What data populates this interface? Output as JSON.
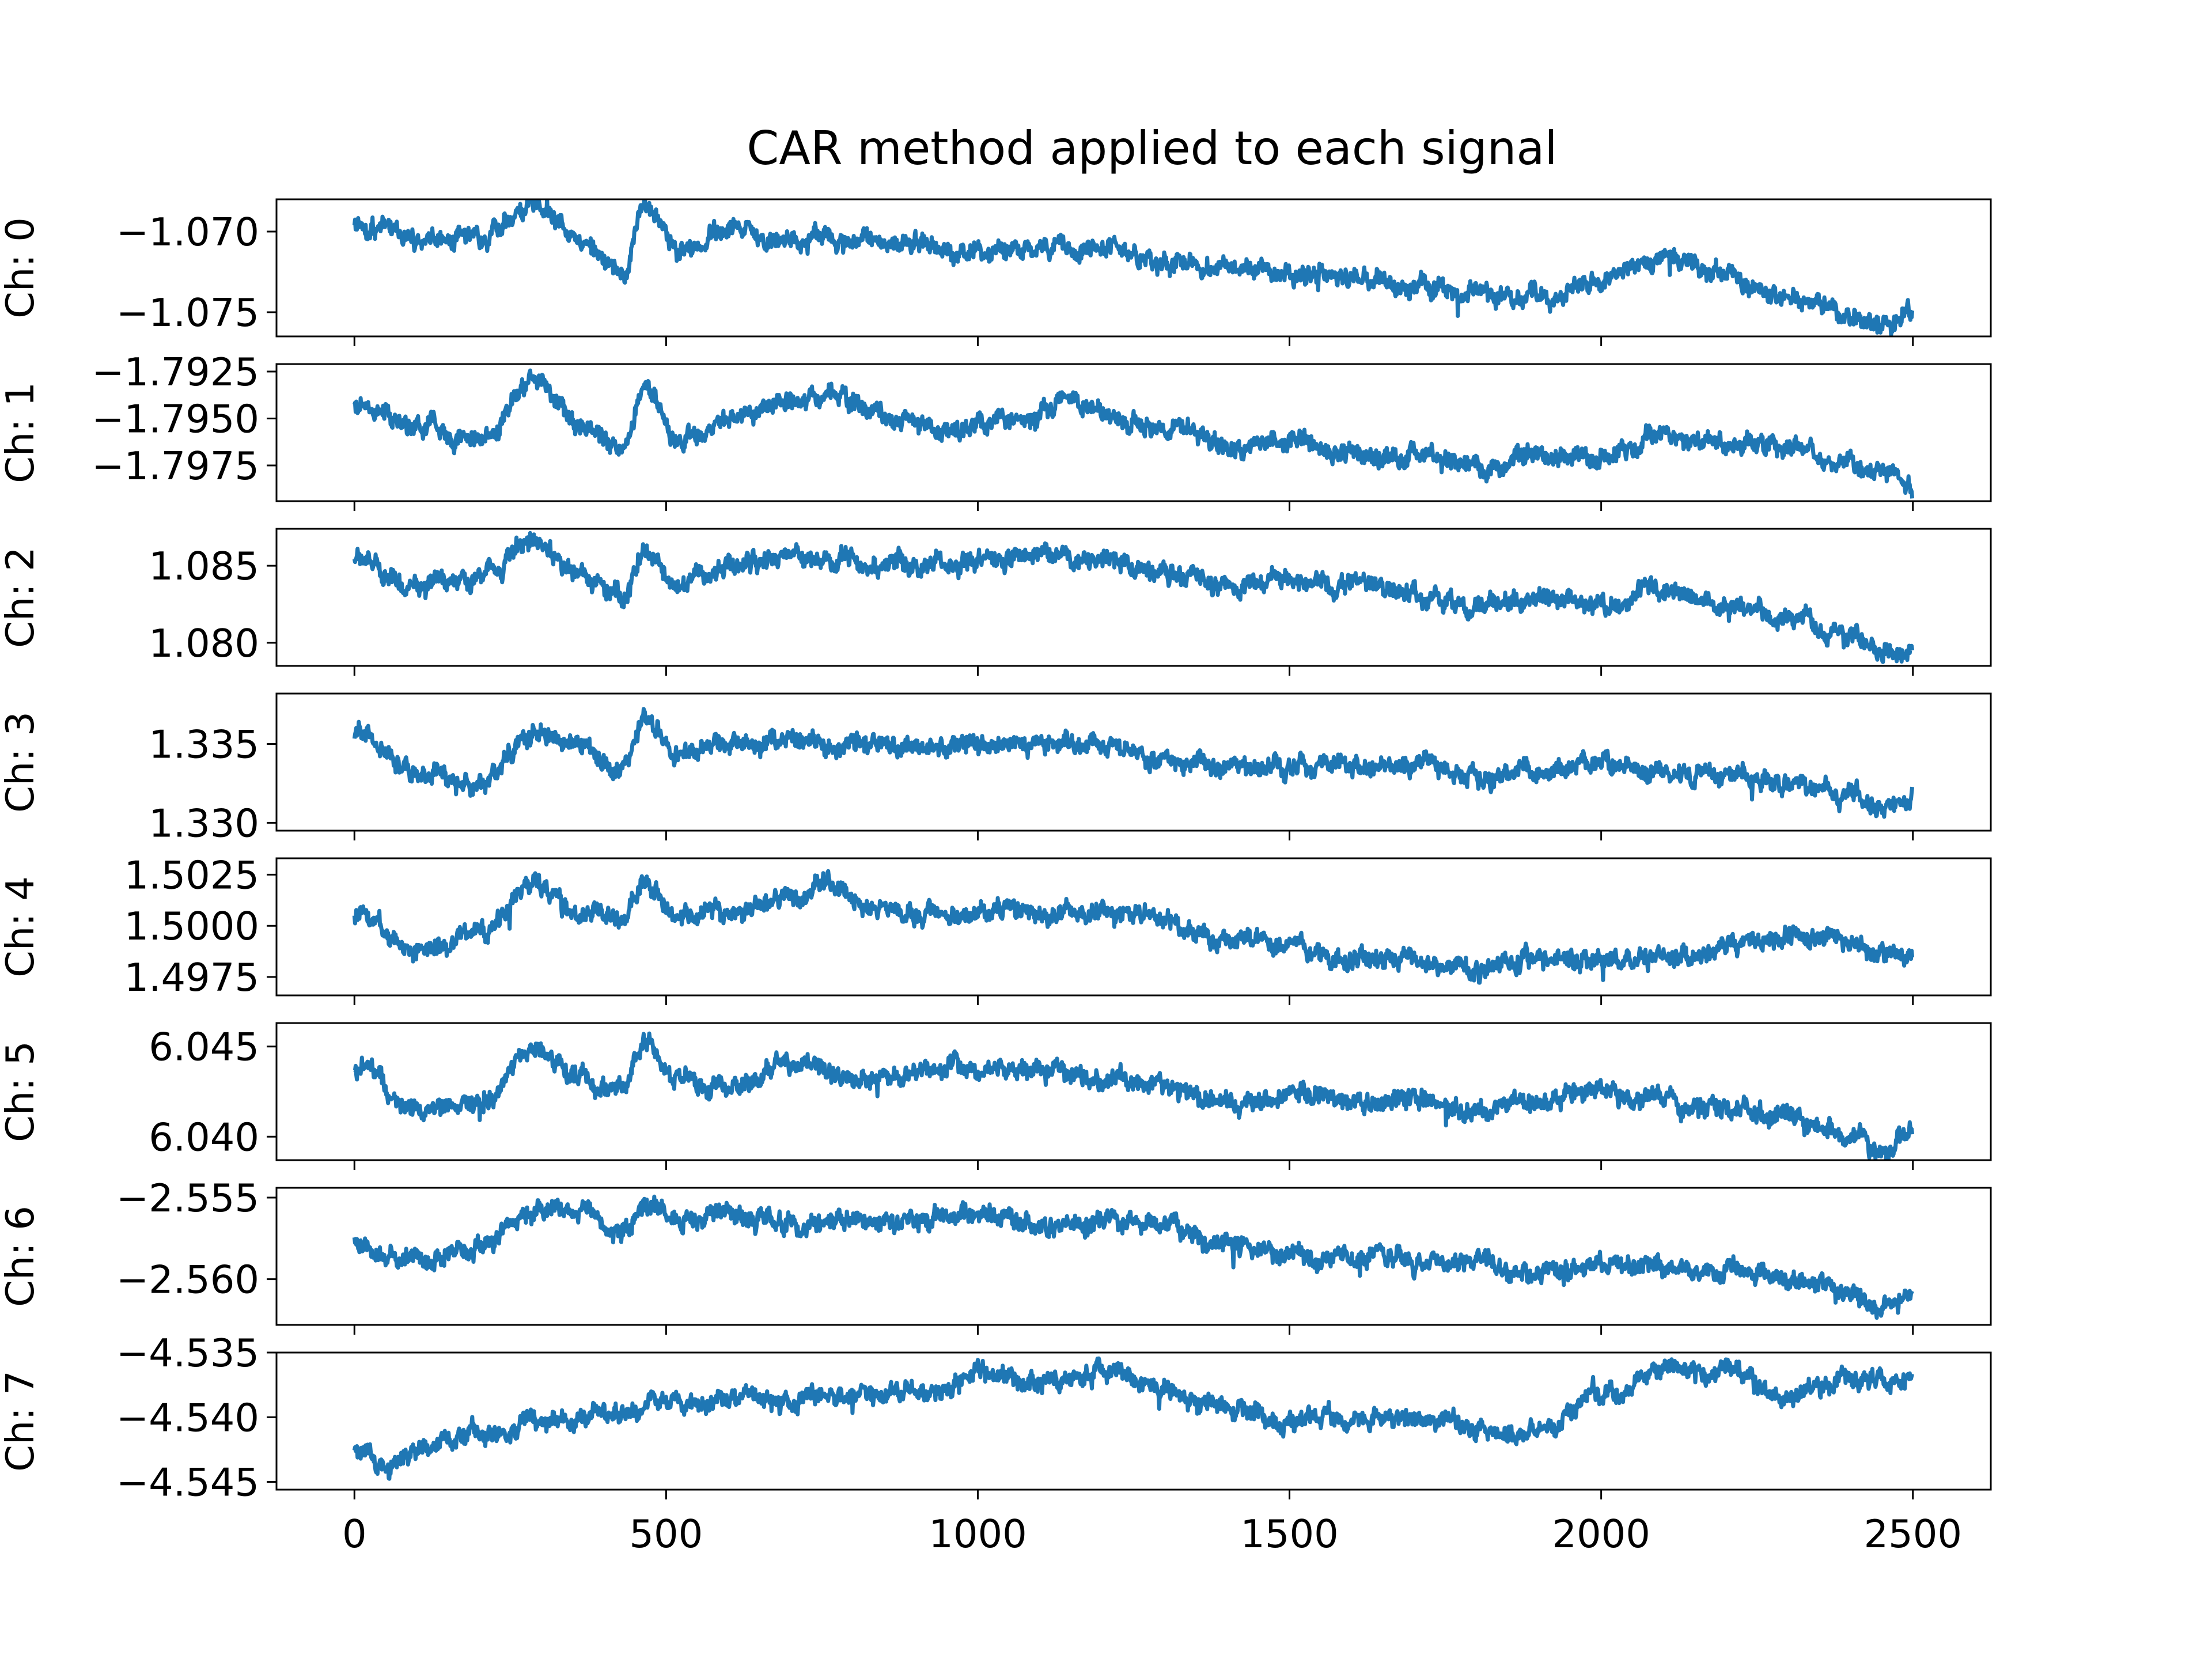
{
  "chart_data": {
    "type": "line",
    "title": "CAR method applied to each signal",
    "xlabel": "",
    "xlim": [
      -125,
      2625
    ],
    "x_ticks": [
      0,
      500,
      1000,
      1500,
      2000,
      2500
    ],
    "x_tick_labels": [
      "0",
      "500",
      "1000",
      "1500",
      "2000",
      "2500"
    ],
    "grid": false,
    "line_color": "#1f77b4",
    "n_samples": 2500,
    "panels": [
      {
        "ylabel": "Ch: 0",
        "ylim": [
          -1.0765,
          -1.068
        ],
        "y_ticks": [
          -1.07,
          -1.075
        ],
        "y_tick_labels": [
          "−1.070",
          "−1.075"
        ],
        "series": {
          "x": [
            0,
            100,
            200,
            290,
            360,
            430,
            465,
            520,
            600,
            700,
            800,
            900,
            1000,
            1100,
            1200,
            1300,
            1400,
            1500,
            1600,
            1700,
            1800,
            1900,
            2000,
            2100,
            2200,
            2300,
            2400,
            2450,
            2500
          ],
          "values": [
            -1.0695,
            -1.0703,
            -1.0704,
            -1.0681,
            -1.0703,
            -1.0723,
            -1.0683,
            -1.0712,
            -1.07,
            -1.0706,
            -1.0705,
            -1.0708,
            -1.0712,
            -1.0711,
            -1.071,
            -1.0718,
            -1.0722,
            -1.0726,
            -1.0728,
            -1.0732,
            -1.0738,
            -1.0742,
            -1.0728,
            -1.0715,
            -1.073,
            -1.074,
            -1.075,
            -1.0757,
            -1.075
          ]
        }
      },
      {
        "ylabel": "Ch: 1",
        "ylim": [
          -1.7994,
          -1.7921
        ],
        "y_ticks": [
          -1.7925,
          -1.795,
          -1.7975
        ],
        "y_tick_labels": [
          "−1.7925",
          "−1.7950",
          "−1.7975"
        ],
        "series": {
          "x": [
            0,
            100,
            200,
            290,
            360,
            430,
            465,
            520,
            600,
            700,
            760,
            850,
            950,
            1050,
            1150,
            1250,
            1300,
            1400,
            1500,
            1600,
            1700,
            1800,
            1900,
            2000,
            2100,
            2200,
            2300,
            2400,
            2450,
            2500
          ],
          "values": [
            -1.7943,
            -1.7955,
            -1.7962,
            -1.793,
            -1.7952,
            -1.7967,
            -1.7934,
            -1.7962,
            -1.795,
            -1.794,
            -1.7938,
            -1.7948,
            -1.7956,
            -1.795,
            -1.7942,
            -1.7953,
            -1.7955,
            -1.7966,
            -1.7963,
            -1.7967,
            -1.797,
            -1.7975,
            -1.797,
            -1.7972,
            -1.796,
            -1.7962,
            -1.7965,
            -1.7973,
            -1.7982,
            -1.7985
          ]
        }
      },
      {
        "ylabel": "Ch: 2",
        "ylim": [
          1.0785,
          1.0874
        ],
        "y_ticks": [
          1.085,
          1.08
        ],
        "y_tick_labels": [
          "1.085",
          "1.080"
        ],
        "series": {
          "x": [
            0,
            100,
            200,
            290,
            360,
            430,
            465,
            520,
            600,
            700,
            800,
            900,
            1000,
            1100,
            1200,
            1300,
            1400,
            1500,
            1600,
            1700,
            1800,
            1900,
            2000,
            2100,
            2200,
            2300,
            2400,
            2450,
            2500
          ],
          "values": [
            1.0855,
            1.0835,
            1.0843,
            1.0866,
            1.0845,
            1.083,
            1.086,
            1.0842,
            1.0848,
            1.0855,
            1.0852,
            1.0851,
            1.0853,
            1.0856,
            1.0854,
            1.0845,
            1.0838,
            1.084,
            1.0838,
            1.0833,
            1.0823,
            1.0828,
            1.0826,
            1.0834,
            1.0825,
            1.0815,
            1.0805,
            1.0795,
            1.0797
          ]
        }
      },
      {
        "ylabel": "Ch: 3",
        "ylim": [
          1.3295,
          1.3382
        ],
        "y_ticks": [
          1.335,
          1.33
        ],
        "y_tick_labels": [
          "1.335",
          "1.330"
        ],
        "series": {
          "x": [
            0,
            100,
            200,
            290,
            360,
            430,
            465,
            520,
            600,
            700,
            800,
            900,
            1000,
            1100,
            1200,
            1300,
            1400,
            1500,
            1600,
            1700,
            1800,
            1900,
            2000,
            2100,
            2200,
            2300,
            2400,
            2450,
            2500
          ],
          "values": [
            1.3355,
            1.333,
            1.3325,
            1.3357,
            1.335,
            1.3335,
            1.3367,
            1.3345,
            1.3348,
            1.3352,
            1.335,
            1.3348,
            1.335,
            1.3349,
            1.3352,
            1.334,
            1.3336,
            1.3337,
            1.3335,
            1.3338,
            1.333,
            1.3335,
            1.3338,
            1.3332,
            1.333,
            1.3325,
            1.3318,
            1.3307,
            1.3315
          ]
        }
      },
      {
        "ylabel": "Ch: 4",
        "ylim": [
          1.4966,
          1.5033
        ],
        "y_ticks": [
          1.5025,
          1.5,
          1.4975
        ],
        "y_tick_labels": [
          "1.5025",
          "1.5000",
          "1.4975"
        ],
        "series": {
          "x": [
            0,
            100,
            200,
            290,
            360,
            430,
            465,
            520,
            600,
            700,
            760,
            850,
            950,
            1050,
            1150,
            1250,
            1300,
            1400,
            1500,
            1600,
            1700,
            1800,
            1900,
            2000,
            2100,
            2200,
            2300,
            2400,
            2450,
            2500
          ],
          "values": [
            1.5005,
            1.499,
            1.4997,
            1.502,
            1.5005,
            1.5003,
            1.5022,
            1.5004,
            1.5008,
            1.5012,
            1.502,
            1.5007,
            1.5005,
            1.5008,
            1.5005,
            1.5007,
            1.5001,
            1.4993,
            1.499,
            1.4983,
            1.4983,
            1.498,
            1.4984,
            1.4983,
            1.4985,
            1.499,
            1.4995,
            1.4993,
            1.4986,
            1.4985
          ]
        }
      },
      {
        "ylabel": "Ch: 5",
        "ylim": [
          6.0387,
          6.0463
        ],
        "y_ticks": [
          6.045,
          6.04
        ],
        "y_tick_labels": [
          "6.045",
          "6.040"
        ],
        "series": {
          "x": [
            0,
            100,
            200,
            290,
            360,
            430,
            465,
            520,
            600,
            700,
            800,
            900,
            1000,
            1100,
            1200,
            1300,
            1400,
            1500,
            1600,
            1700,
            1800,
            1900,
            2000,
            2100,
            2200,
            2300,
            2400,
            2450,
            2500
          ],
          "values": [
            6.0438,
            6.0415,
            6.042,
            6.045,
            6.0433,
            6.0425,
            6.0455,
            6.043,
            6.0428,
            6.044,
            6.0433,
            6.0435,
            6.0438,
            6.0437,
            6.0432,
            6.0428,
            6.0418,
            6.0422,
            6.042,
            6.042,
            6.0415,
            6.042,
            6.0425,
            6.042,
            6.0415,
            6.041,
            6.0402,
            6.0393,
            6.04
          ]
        }
      },
      {
        "ylabel": "Ch: 6",
        "ylim": [
          -2.5628,
          -2.5544
        ],
        "y_ticks": [
          -2.555,
          -2.56
        ],
        "y_tick_labels": [
          "−2.555",
          "−2.560"
        ],
        "series": {
          "x": [
            0,
            100,
            200,
            290,
            360,
            430,
            465,
            520,
            600,
            700,
            800,
            900,
            1000,
            1100,
            1200,
            1300,
            1400,
            1500,
            1600,
            1700,
            1800,
            1900,
            2000,
            2100,
            2200,
            2300,
            2400,
            2450,
            2500
          ],
          "values": [
            -2.558,
            -2.559,
            -2.558,
            -2.5558,
            -2.556,
            -2.5572,
            -2.5556,
            -2.5565,
            -2.556,
            -2.5565,
            -2.5565,
            -2.5566,
            -2.556,
            -2.5565,
            -2.5565,
            -2.557,
            -2.5578,
            -2.5585,
            -2.5588,
            -2.5588,
            -2.559,
            -2.5595,
            -2.559,
            -2.5592,
            -2.5593,
            -2.56,
            -2.561,
            -2.5618,
            -2.561
          ]
        }
      },
      {
        "ylabel": "Ch: 7",
        "ylim": [
          -4.5456,
          -4.535
        ],
        "y_ticks": [
          -4.535,
          -4.54,
          -4.545
        ],
        "y_tick_labels": [
          "−4.535",
          "−4.540",
          "−4.545"
        ],
        "series": {
          "x": [
            0,
            50,
            100,
            200,
            300,
            400,
            500,
            600,
            700,
            800,
            900,
            1000,
            1100,
            1200,
            1300,
            1400,
            1500,
            1600,
            1700,
            1800,
            1850,
            1900,
            2000,
            2100,
            2200,
            2300,
            2400,
            2500
          ],
          "values": [
            -4.5425,
            -4.544,
            -4.5425,
            -4.541,
            -4.5402,
            -4.5398,
            -4.539,
            -4.5385,
            -4.5388,
            -4.5382,
            -4.538,
            -4.5368,
            -4.5372,
            -4.5365,
            -4.538,
            -4.5395,
            -4.5402,
            -4.54,
            -4.54,
            -4.541,
            -4.5418,
            -4.5412,
            -4.5385,
            -4.5362,
            -4.5365,
            -4.5383,
            -4.537,
            -4.5372
          ]
        }
      }
    ]
  }
}
